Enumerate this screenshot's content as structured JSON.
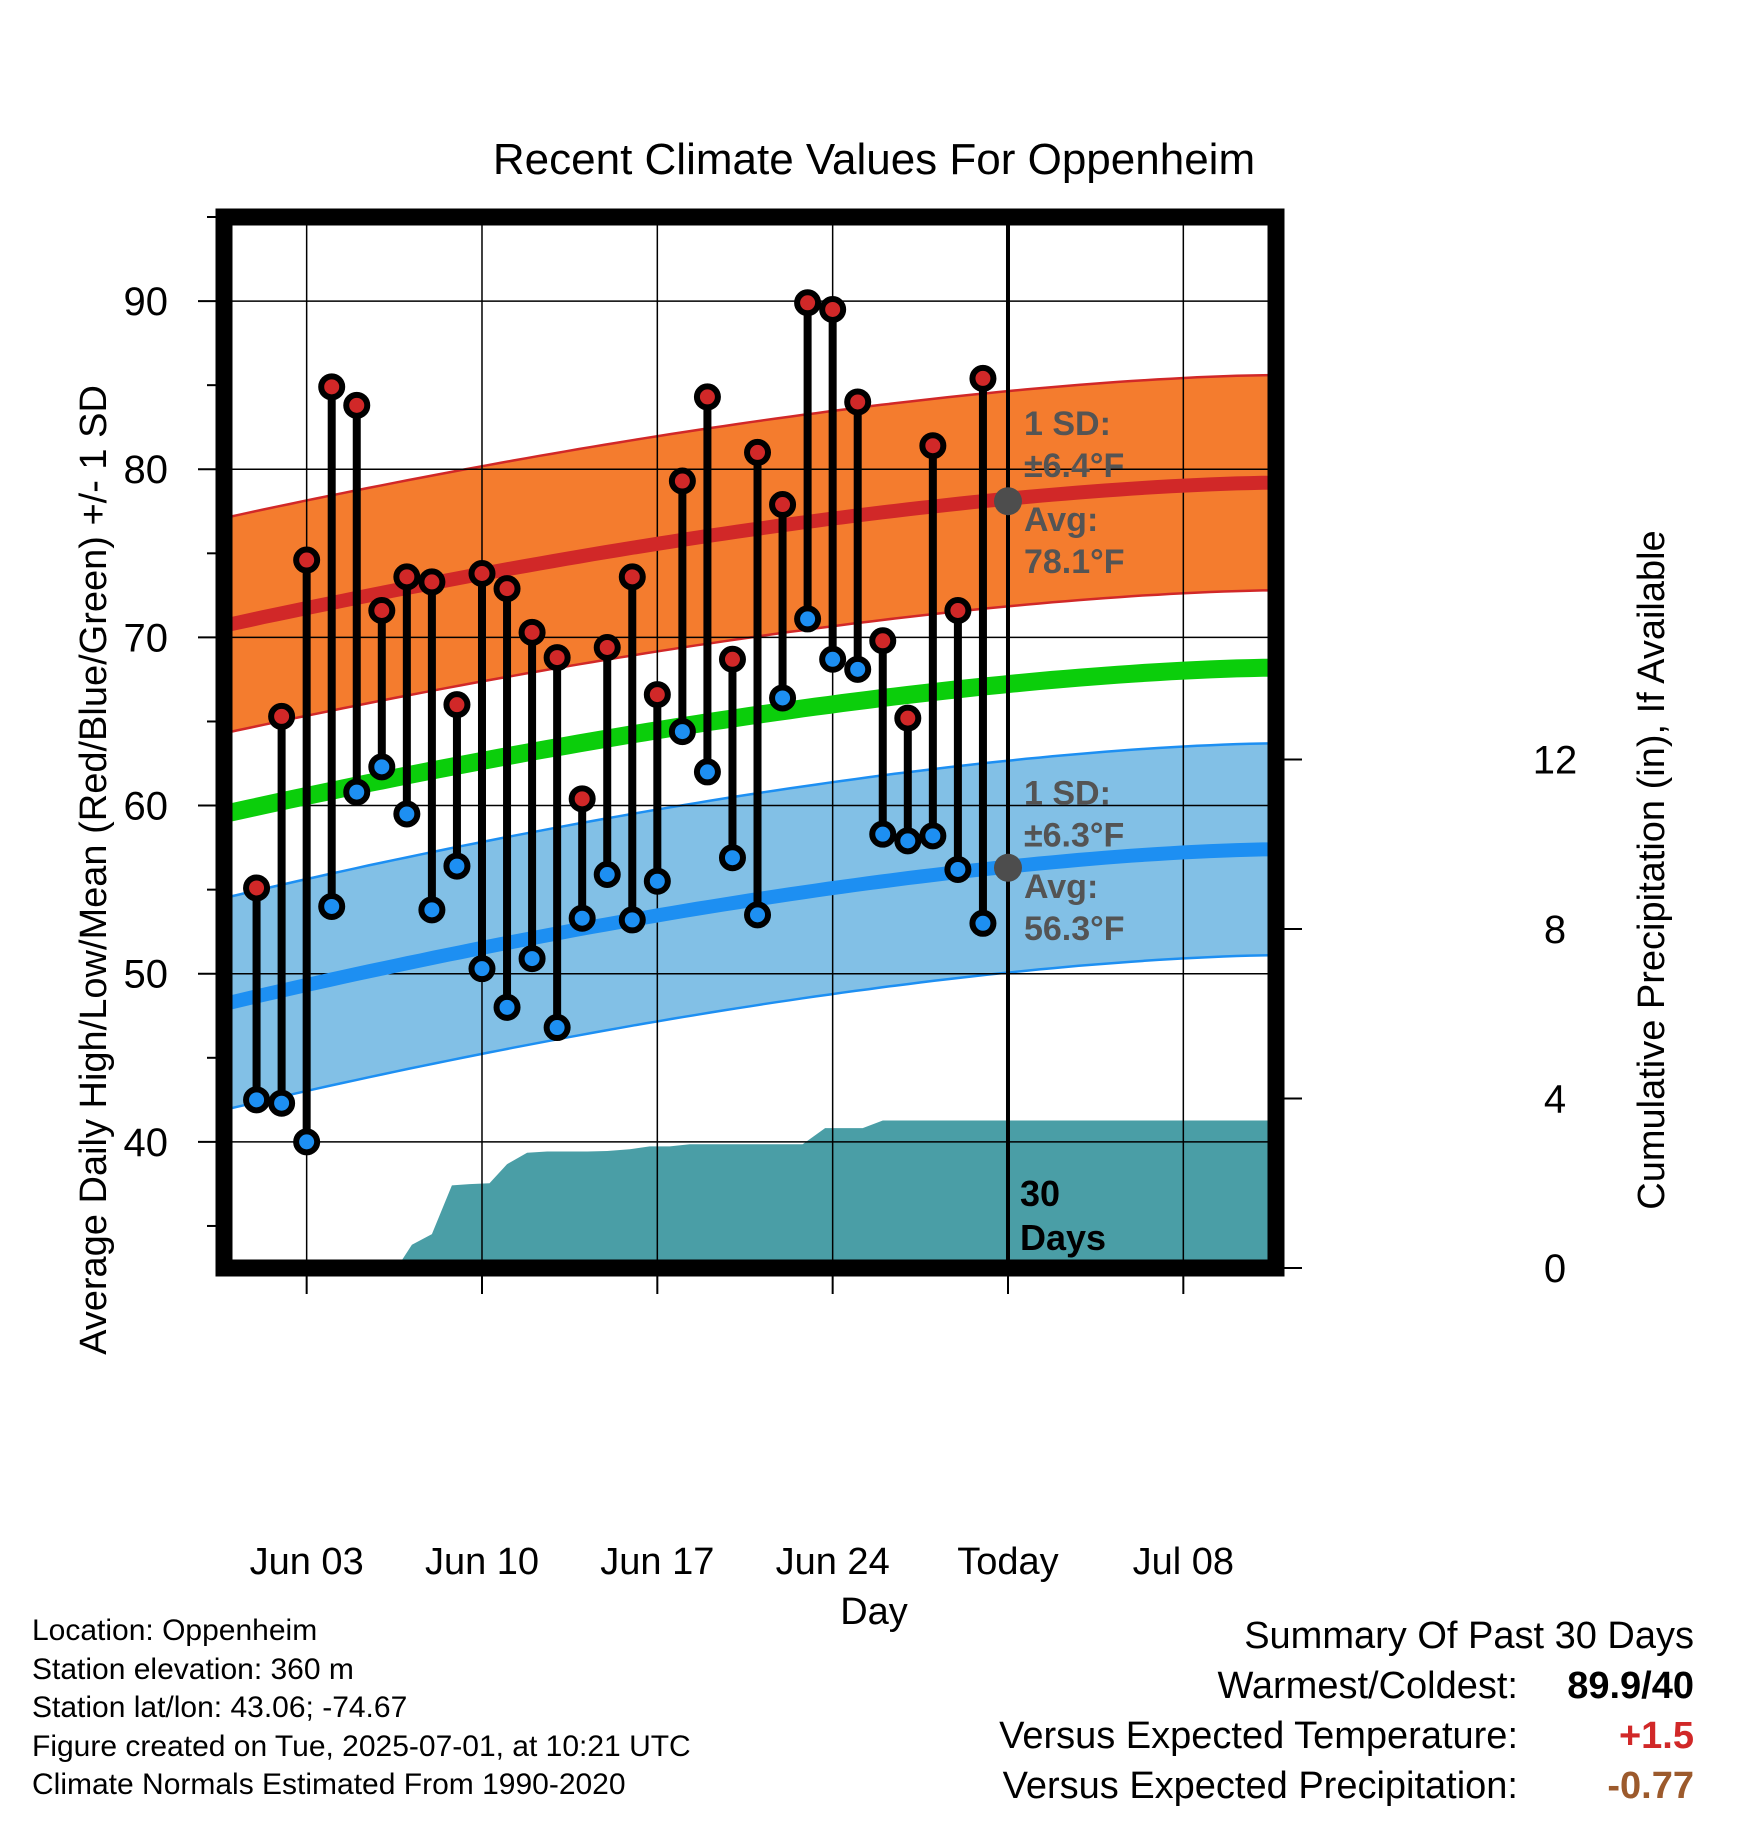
{
  "chart_data": {
    "type": "line",
    "title": "Recent Climate Values For Oppenheim",
    "xlabel": "Day",
    "ylabel_left": "Average Daily High/Low/Mean (Red/Blue/Green) +/- 1 SD",
    "ylabel_right": "Cumulative Precipitation (in), If Available",
    "x_ticks": [
      {
        "day": 3,
        "label": "Jun 03"
      },
      {
        "day": 10,
        "label": "Jun 10"
      },
      {
        "day": 17,
        "label": "Jun 17"
      },
      {
        "day": 24,
        "label": "Jun 24"
      },
      {
        "day": 31,
        "label": "Today"
      },
      {
        "day": 38,
        "label": "Jul 08"
      }
    ],
    "x_range_days": [
      -0.3,
      41.7
    ],
    "ylim_left": [
      32.5,
      95
    ],
    "y_ticks_left": [
      40,
      50,
      60,
      70,
      80,
      90
    ],
    "ylim_right": [
      0,
      24.8
    ],
    "y_ticks_right": [
      0,
      4,
      8,
      12
    ],
    "grid": true,
    "today_day": 31,
    "today_marker_label": "30 Days",
    "normals": {
      "days": [
        -0.3,
        41.7
      ],
      "avg_high": [
        70.7,
        79.2
      ],
      "avg_low": [
        48.2,
        57.4
      ],
      "avg_mean": [
        59.5,
        68.2
      ],
      "high_sd": 6.4,
      "low_sd": 6.3
    },
    "today_normals": {
      "avg_high": 78.1,
      "avg_low": 56.3
    },
    "annotations": {
      "high_sd_label": "1 SD:",
      "high_sd_value": "±6.4°F",
      "high_avg_label": "Avg:",
      "high_avg_value": "78.1°F",
      "low_sd_label": "1 SD:",
      "low_sd_value": "±6.3°F",
      "low_avg_label": "Avg:",
      "low_avg_value": "56.3°F"
    },
    "daily": {
      "days": [
        1,
        2,
        3,
        4,
        5,
        6,
        7,
        8,
        9,
        10,
        11,
        12,
        13,
        14,
        15,
        16,
        17,
        18,
        19,
        20,
        21,
        22,
        23,
        24,
        25,
        26,
        27,
        28,
        29,
        30
      ],
      "highs": [
        55.1,
        65.3,
        74.6,
        84.9,
        83.8,
        71.6,
        73.6,
        73.3,
        66.0,
        73.8,
        72.9,
        70.3,
        68.8,
        60.4,
        69.4,
        73.6,
        66.6,
        79.3,
        84.3,
        68.7,
        81.0,
        77.9,
        89.9,
        89.5,
        84.0,
        69.8,
        65.2,
        81.4,
        71.6,
        85.4
      ],
      "lows": [
        42.5,
        42.3,
        40.0,
        54.0,
        60.8,
        62.3,
        59.5,
        53.8,
        56.4,
        50.3,
        48.0,
        50.9,
        46.8,
        53.3,
        55.9,
        53.2,
        55.5,
        64.4,
        62.0,
        56.9,
        53.5,
        66.4,
        71.1,
        68.7,
        68.1,
        58.3,
        57.9,
        58.2,
        56.2,
        53.0
      ]
    },
    "precip_cumulative": {
      "days": [
        1,
        1.95,
        2.9,
        3.5,
        4.4,
        5.4,
        6.1,
        6.6,
        7.2,
        8.0,
        8.8,
        9.5,
        10.3,
        11.0,
        11.8,
        12.6,
        13.4,
        14.2,
        15.0,
        15.9,
        16.7,
        17.5,
        18.3,
        19.1,
        20.2,
        21.1,
        21.9,
        22.8,
        23.7,
        24.2,
        24.5,
        25.2,
        26.0,
        26.9,
        27.6,
        28.5,
        29.5,
        30.4,
        31.0,
        32.0,
        34.0,
        36.0,
        38.0,
        40.0,
        41.7
      ],
      "values": [
        0,
        0,
        0,
        0,
        0,
        0,
        0,
        0,
        0.55,
        0.8,
        1.95,
        1.98,
        2.0,
        2.45,
        2.72,
        2.75,
        2.75,
        2.75,
        2.76,
        2.8,
        2.87,
        2.87,
        2.92,
        2.92,
        2.92,
        2.92,
        2.92,
        2.92,
        3.3,
        3.3,
        3.3,
        3.3,
        3.48,
        3.48,
        3.48,
        3.48,
        3.48,
        3.48,
        3.48,
        3.48,
        3.48,
        3.48,
        3.48,
        3.48,
        3.48
      ]
    },
    "colors": {
      "high_band": "#f47c2e",
      "high_line": "#d12828",
      "low_band": "#82c0e6",
      "low_line": "#1d8ff2",
      "mean_line": "#0bce0b",
      "precip": "#4a9ea6",
      "high_marker": "#d12828",
      "low_marker": "#1d8ff2",
      "annotation_text": "#545454",
      "today_dot": "#4d4d4d"
    }
  },
  "footer": {
    "location": "Location: Oppenheim",
    "elevation": "Station elevation: 360 m",
    "latlon": "Station lat/lon: 43.06; -74.67",
    "created": "Figure created on Tue, 2025-07-01, at 10:21 UTC",
    "normals": "Climate Normals Estimated From 1990-2020"
  },
  "summary": {
    "title": "Summary Of Past 30 Days",
    "warmest_label": "Warmest/Coldest:",
    "warmest_value": "89.9/40",
    "temp_label": "Versus Expected Temperature:",
    "temp_value": "+1.5",
    "temp_color": "#d12828",
    "precip_label": "Versus Expected Precipitation:",
    "precip_value": "-0.77",
    "precip_color": "#9c5a2c"
  }
}
